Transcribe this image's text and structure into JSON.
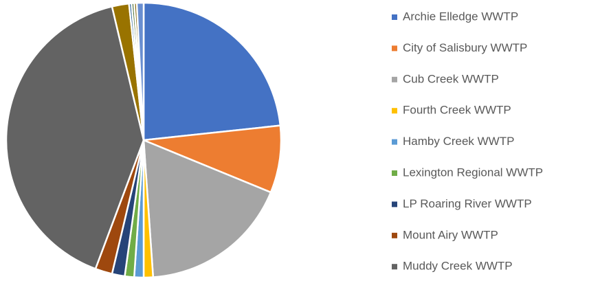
{
  "chart_data": {
    "type": "pie",
    "categories": [
      "Archie Elledge WWTP",
      "City of Salisbury WWTP",
      "Cub Creek WWTP",
      "Fourth Creek WWTP",
      "Hamby Creek WWTP",
      "Lexington Regional WWTP",
      "LP Roaring River WWTP",
      "Mount Airy WWTP",
      "Muddy Creek WWTP",
      null,
      null,
      null,
      null,
      null
    ],
    "values": [
      23.3,
      7.9,
      17.7,
      1.1,
      1.1,
      1.1,
      1.5,
      2.0,
      40.6,
      2.0,
      0.3,
      0.3,
      0.3,
      0.8
    ],
    "colors": [
      "#4472c4",
      "#ed7d31",
      "#a5a5a5",
      "#ffc000",
      "#5b9bd5",
      "#70ad47",
      "#264478",
      "#9e480e",
      "#636363",
      "#997300",
      "#255e91",
      "#43682b",
      "#7f6000",
      "#698ed0"
    ],
    "legend": "right"
  }
}
